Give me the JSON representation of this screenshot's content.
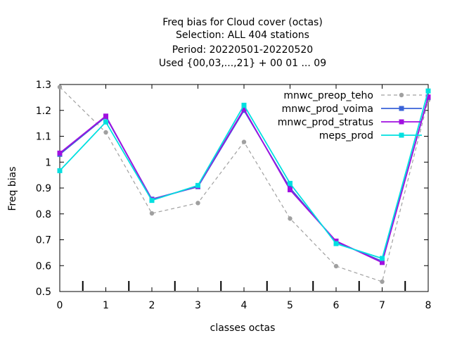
{
  "chart_data": {
    "type": "line",
    "title_lines": [
      "Freq bias  for Cloud cover (octas)",
      "Selection: ALL    404 stations",
      "Period: 20220501-20220520",
      "Used {00,03,...,21} + 00 01 ... 09"
    ],
    "xlabel": "classes octas",
    "ylabel": "Freq bias",
    "xlim": [
      0,
      8
    ],
    "ylim": [
      0.5,
      1.3
    ],
    "x_ticks": [
      "0",
      "1",
      "2",
      "3",
      "4",
      "5",
      "6",
      "7",
      "8"
    ],
    "y_ticks": [
      "0.5",
      "0.6",
      "0.7",
      "0.8",
      "0.9",
      "1",
      "1.1",
      "1.2",
      "1.3"
    ],
    "legend_position": "top-right",
    "x": [
      0,
      1,
      2,
      3,
      4,
      5,
      6,
      7,
      8
    ],
    "series": [
      {
        "name": "mnwc_preop_teho",
        "color": "#a0a0a0",
        "dashed": true,
        "marker": "circle",
        "values": [
          1.29,
          1.115,
          0.802,
          0.842,
          1.078,
          0.782,
          0.598,
          0.538,
          1.24
        ]
      },
      {
        "name": "mnwc_prod_voima",
        "color": "#3a63d8",
        "dashed": false,
        "marker": "square",
        "values": [
          1.03,
          1.175,
          0.857,
          0.905,
          1.2,
          0.9,
          0.692,
          0.617,
          1.25
        ]
      },
      {
        "name": "mnwc_prod_stratus",
        "color": "#a010e0",
        "dashed": false,
        "marker": "square",
        "values": [
          1.035,
          1.178,
          0.855,
          0.907,
          1.205,
          0.893,
          0.695,
          0.612,
          1.252
        ]
      },
      {
        "name": "meps_prod",
        "color": "#00e0e0",
        "dashed": false,
        "marker": "square",
        "values": [
          0.967,
          1.155,
          0.852,
          0.91,
          1.22,
          0.918,
          0.685,
          0.628,
          1.275
        ]
      }
    ]
  }
}
